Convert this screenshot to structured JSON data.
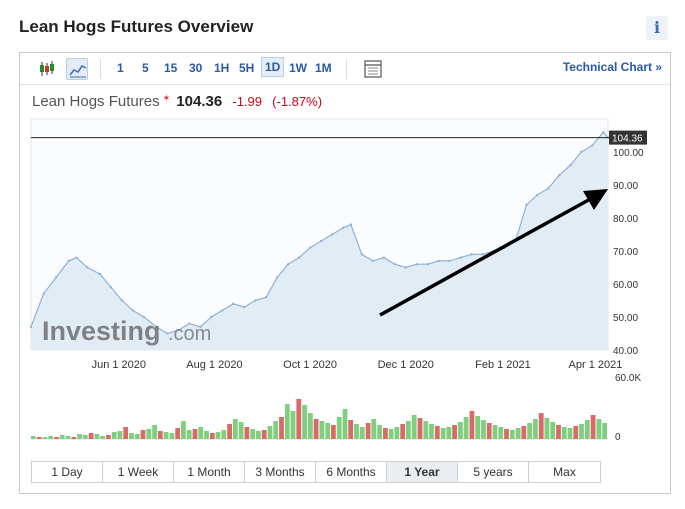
{
  "header": {
    "title": "Lean Hogs Futures Overview",
    "info_label": "i"
  },
  "toolbar": {
    "timeframes": [
      "1",
      "5",
      "15",
      "30",
      "1H",
      "5H",
      "1D",
      "1W",
      "1M"
    ],
    "active_timeframe": "1D",
    "technical_chart_label": "Technical Chart »"
  },
  "quote": {
    "name": "Lean Hogs Futures",
    "direction_marker": "✶",
    "price": "104.36",
    "change": "-1.99",
    "change_pct": "(-1.87%)"
  },
  "chart_data": {
    "type": "area",
    "x_tick_labels": [
      "Jun 1 2020",
      "Aug 1 2020",
      "Oct 1 2020",
      "Dec 1 2020",
      "Feb 1 2021",
      "Apr 1 2021"
    ],
    "y_tick_labels": [
      "100.00",
      "90.00",
      "80.00",
      "70.00",
      "60.00",
      "50.00",
      "40.00"
    ],
    "ylim": [
      40,
      110
    ],
    "last_price_label": "104.36",
    "last_price": 104.36,
    "volume_tick_labels": [
      "60.0K",
      "0"
    ],
    "watermark": "Investing.com",
    "price_series": [
      {
        "x": "2020-04-06",
        "y": 47
      },
      {
        "x": "2020-04-14",
        "y": 57
      },
      {
        "x": "2020-04-22",
        "y": 62
      },
      {
        "x": "2020-04-30",
        "y": 67
      },
      {
        "x": "2020-05-05",
        "y": 68
      },
      {
        "x": "2020-05-12",
        "y": 65
      },
      {
        "x": "2020-05-20",
        "y": 63
      },
      {
        "x": "2020-05-27",
        "y": 59
      },
      {
        "x": "2020-06-03",
        "y": 55
      },
      {
        "x": "2020-06-10",
        "y": 52
      },
      {
        "x": "2020-06-17",
        "y": 50
      },
      {
        "x": "2020-06-25",
        "y": 47
      },
      {
        "x": "2020-07-02",
        "y": 45
      },
      {
        "x": "2020-07-09",
        "y": 46
      },
      {
        "x": "2020-07-16",
        "y": 48
      },
      {
        "x": "2020-07-23",
        "y": 47
      },
      {
        "x": "2020-07-30",
        "y": 50
      },
      {
        "x": "2020-08-06",
        "y": 52
      },
      {
        "x": "2020-08-13",
        "y": 54
      },
      {
        "x": "2020-08-20",
        "y": 53
      },
      {
        "x": "2020-08-27",
        "y": 55
      },
      {
        "x": "2020-09-03",
        "y": 56
      },
      {
        "x": "2020-09-10",
        "y": 62
      },
      {
        "x": "2020-09-17",
        "y": 66
      },
      {
        "x": "2020-09-24",
        "y": 68
      },
      {
        "x": "2020-10-01",
        "y": 71
      },
      {
        "x": "2020-10-08",
        "y": 73
      },
      {
        "x": "2020-10-15",
        "y": 75
      },
      {
        "x": "2020-10-22",
        "y": 77
      },
      {
        "x": "2020-10-27",
        "y": 78
      },
      {
        "x": "2020-11-03",
        "y": 69
      },
      {
        "x": "2020-11-10",
        "y": 67
      },
      {
        "x": "2020-11-17",
        "y": 68
      },
      {
        "x": "2020-11-24",
        "y": 66
      },
      {
        "x": "2020-12-01",
        "y": 65
      },
      {
        "x": "2020-12-08",
        "y": 66
      },
      {
        "x": "2020-12-15",
        "y": 66
      },
      {
        "x": "2020-12-22",
        "y": 67
      },
      {
        "x": "2020-12-29",
        "y": 67
      },
      {
        "x": "2021-01-05",
        "y": 68
      },
      {
        "x": "2021-01-12",
        "y": 69
      },
      {
        "x": "2021-01-19",
        "y": 69
      },
      {
        "x": "2021-01-26",
        "y": 70
      },
      {
        "x": "2021-02-02",
        "y": 71
      },
      {
        "x": "2021-02-09",
        "y": 73
      },
      {
        "x": "2021-02-16",
        "y": 84
      },
      {
        "x": "2021-02-23",
        "y": 87
      },
      {
        "x": "2021-03-02",
        "y": 89
      },
      {
        "x": "2021-03-09",
        "y": 93
      },
      {
        "x": "2021-03-16",
        "y": 96
      },
      {
        "x": "2021-03-23",
        "y": 100
      },
      {
        "x": "2021-03-30",
        "y": 102
      },
      {
        "x": "2021-04-06",
        "y": 106
      },
      {
        "x": "2021-04-09",
        "y": 104.36
      }
    ],
    "volume_series": [
      3,
      2,
      2,
      3,
      2,
      4,
      3,
      2,
      5,
      4,
      6,
      5,
      3,
      4,
      7,
      8,
      12,
      6,
      5,
      9,
      10,
      14,
      8,
      7,
      6,
      11,
      18,
      9,
      10,
      12,
      8,
      6,
      7,
      9,
      15,
      20,
      17,
      12,
      10,
      8,
      9,
      13,
      18,
      22,
      35,
      28,
      40,
      34,
      26,
      20,
      18,
      16,
      14,
      22,
      30,
      19,
      15,
      12,
      16,
      20,
      14,
      11,
      10,
      12,
      15,
      18,
      24,
      21,
      18,
      15,
      13,
      11,
      12,
      14,
      17,
      22,
      28,
      23,
      19,
      16,
      14,
      12,
      10,
      9,
      11,
      13,
      16,
      20,
      26,
      21,
      17,
      14,
      12,
      11,
      13,
      15,
      19,
      24,
      20,
      16
    ]
  },
  "range_buttons": [
    "1 Day",
    "1 Week",
    "1 Month",
    "3 Months",
    "6 Months",
    "1 Year",
    "5 years",
    "Max"
  ],
  "active_range": "1 Year"
}
